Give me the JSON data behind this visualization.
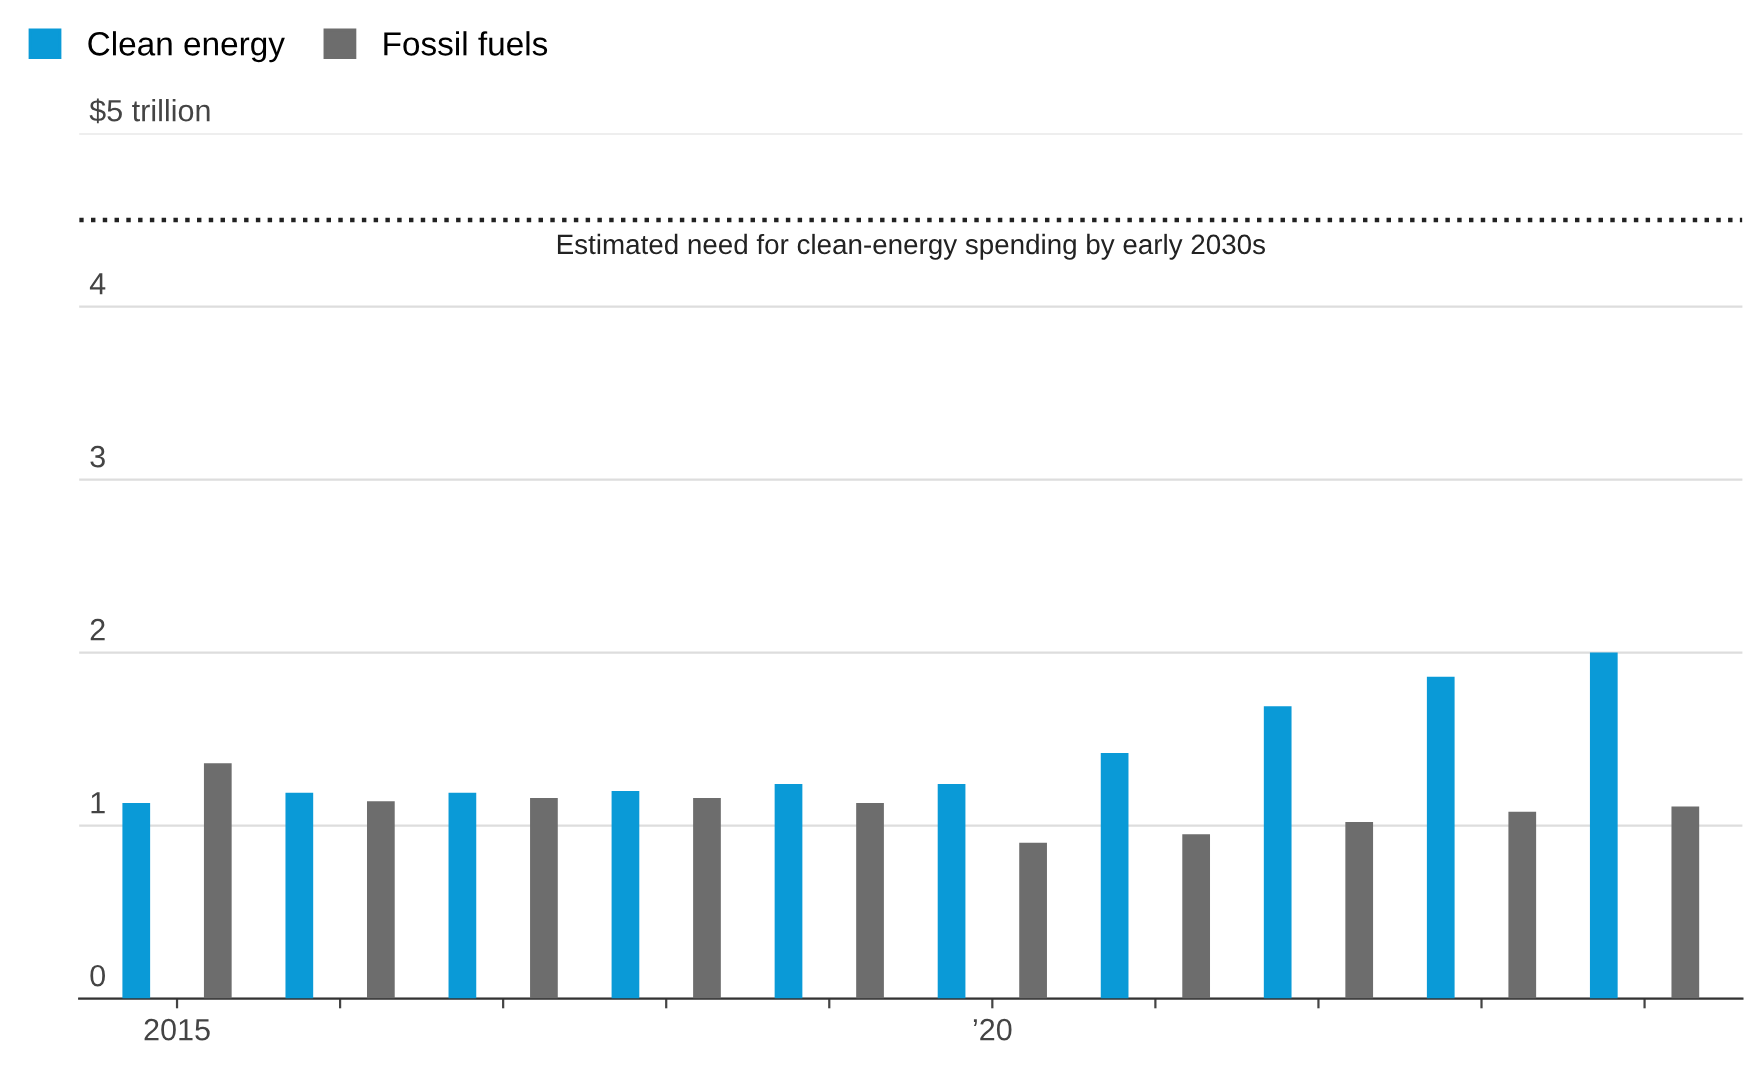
{
  "chart_data": {
    "type": "bar",
    "categories": [
      "2015",
      null,
      null,
      null,
      null,
      "’20",
      null,
      null,
      null,
      null
    ],
    "series": [
      {
        "name": "Clean energy",
        "color": "#0a9ad7",
        "values": [
          1.13,
          1.19,
          1.19,
          1.2,
          1.24,
          1.24,
          1.42,
          1.69,
          1.86,
          2.0
        ]
      },
      {
        "name": "Fossil fuels",
        "color": "#6d6d6d",
        "values": [
          1.36,
          1.14,
          1.16,
          1.16,
          1.13,
          0.9,
          0.95,
          1.02,
          1.08,
          1.11
        ]
      }
    ],
    "ylim": [
      0,
      5
    ],
    "yticks": [
      0,
      1,
      2,
      3,
      4,
      {
        "value": 5,
        "label": "$5 trillion"
      }
    ],
    "grid": "y",
    "legend": "top left",
    "ref_lines": [
      {
        "axis": "y",
        "value": 4.5,
        "label": "Estimated need for clean-energy spending by early 2030s",
        "color": "#222222",
        "line_style": "dotted"
      }
    ]
  }
}
